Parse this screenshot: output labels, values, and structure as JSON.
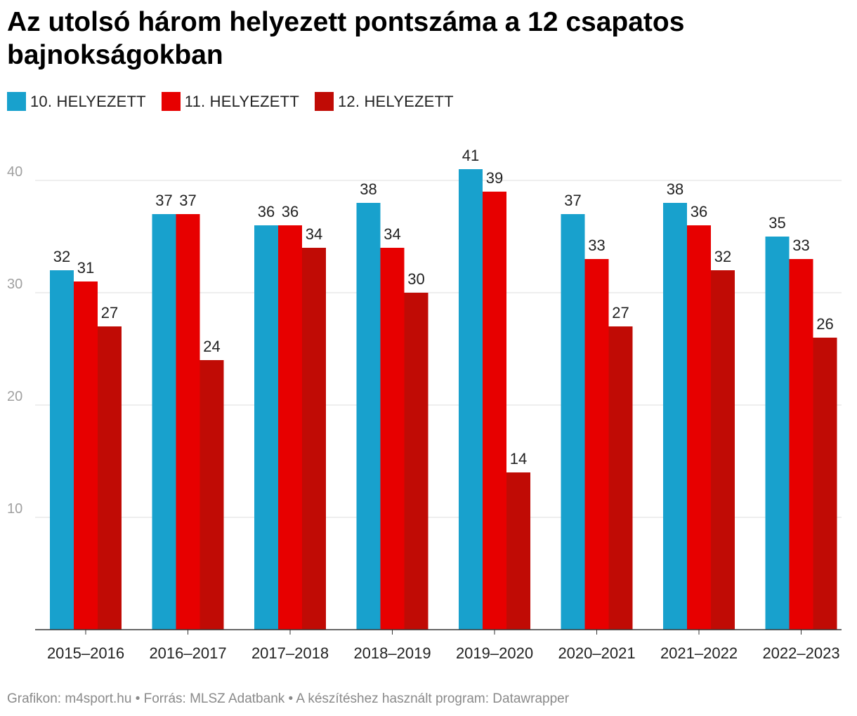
{
  "title": "Az utolsó három helyezett pontszáma a 12 csapatos bajnokságokban",
  "footer": "Grafikon: m4sport.hu • Forrás: MLSZ Adatbank • A készítéshez használt program: Datawrapper",
  "colors": {
    "s10": "#18a1cd",
    "s11": "#e70000",
    "s12": "#c00b05",
    "grid": "#dedede",
    "axis": "#333333",
    "tick": "#a0a0a0"
  },
  "chart_data": {
    "type": "bar",
    "title": "Az utolsó három helyezett pontszáma a 12 csapatos bajnokságokban",
    "xlabel": "",
    "ylabel": "",
    "ylim": [
      0,
      44
    ],
    "yticks": [
      10,
      20,
      30,
      40
    ],
    "grid": true,
    "legend": "top-left",
    "categories": [
      "2015–2016",
      "2016–2017",
      "2017–2018",
      "2018–2019",
      "2019–2020",
      "2020–2021",
      "2021–2022",
      "2022–2023"
    ],
    "series": [
      {
        "name": "10. HELYEZETT",
        "color": "#18a1cd",
        "values": [
          32,
          37,
          36,
          38,
          41,
          37,
          38,
          35
        ]
      },
      {
        "name": "11. HELYEZETT",
        "color": "#e70000",
        "values": [
          31,
          37,
          36,
          34,
          39,
          33,
          36,
          33
        ]
      },
      {
        "name": "12. HELYEZETT",
        "color": "#c00b05",
        "values": [
          27,
          24,
          34,
          30,
          14,
          27,
          32,
          26
        ]
      }
    ]
  }
}
